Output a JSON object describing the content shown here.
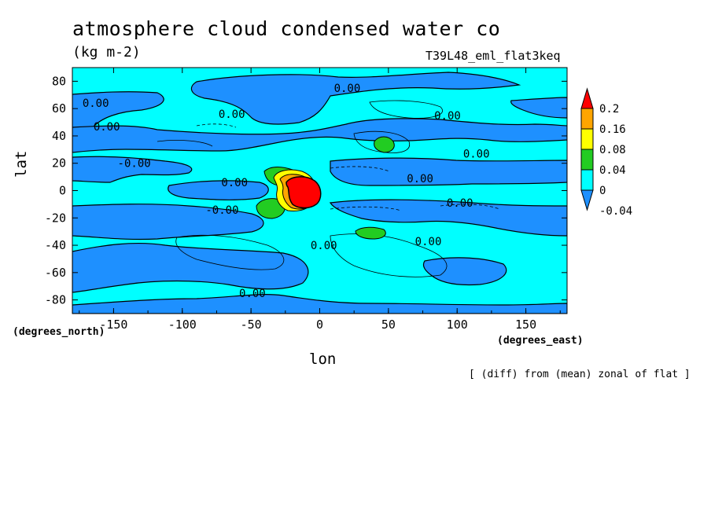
{
  "chart_data": {
    "type": "heatmap",
    "title": "atmosphere cloud condensed water co",
    "units": "(kg m-2)",
    "run_name": "T39L48_eml_flat3keq",
    "xlabel": "lon",
    "ylabel": "lat",
    "x_unit_label": "(degrees_east)",
    "y_unit_label": "(degrees_north)",
    "footnote": "[ (diff) from (mean) zonal of flat ]",
    "xlim": [
      -180,
      180
    ],
    "ylim": [
      -90,
      90
    ],
    "x_ticks": [
      -150,
      -100,
      -50,
      0,
      50,
      100,
      150
    ],
    "y_ticks": [
      -80,
      -60,
      -40,
      -20,
      0,
      20,
      40,
      60,
      80
    ],
    "x_tick_labels": [
      "-150",
      "-100",
      "-50",
      "0",
      "50",
      "100",
      "150"
    ],
    "y_tick_labels": [
      "-80",
      "-60",
      "-40",
      "-20",
      "0",
      "20",
      "40",
      "60",
      "80"
    ],
    "colorbar": {
      "levels": [
        "-0.04",
        "0",
        "0.04",
        "0.08",
        "0.16",
        "0.2"
      ],
      "colors": [
        "#1e90ff",
        "#00ffff",
        "#22cc22",
        "#ffff00",
        "#ffa500",
        "#ff0000"
      ],
      "extend": "both"
    },
    "contour_labels": [
      {
        "text": "0.00",
        "lon": -163,
        "lat": 64
      },
      {
        "text": "0.00",
        "lon": -155,
        "lat": 47
      },
      {
        "text": "0.00",
        "lon": -64,
        "lat": 56
      },
      {
        "text": "0.00",
        "lon": 20,
        "lat": 75
      },
      {
        "text": "0.00",
        "lon": 93,
        "lat": 55
      },
      {
        "text": "0.00",
        "lon": 114,
        "lat": 27
      },
      {
        "text": "-0.00",
        "lon": -135,
        "lat": 20
      },
      {
        "text": "0.00",
        "lon": -62,
        "lat": 6
      },
      {
        "text": "0.00",
        "lon": 73,
        "lat": 9
      },
      {
        "text": "0.00",
        "lon": 102,
        "lat": -9
      },
      {
        "text": "-0.00",
        "lon": -71,
        "lat": -14
      },
      {
        "text": "0.00",
        "lon": 79,
        "lat": -37
      },
      {
        "text": "0.00",
        "lon": 3,
        "lat": -40
      },
      {
        "text": "0.00",
        "lon": -49,
        "lat": -75
      }
    ],
    "max_region": {
      "lon_range": [
        -25,
        0
      ],
      "lat_range": [
        -12,
        10
      ],
      "value_gt": 0.2
    }
  }
}
